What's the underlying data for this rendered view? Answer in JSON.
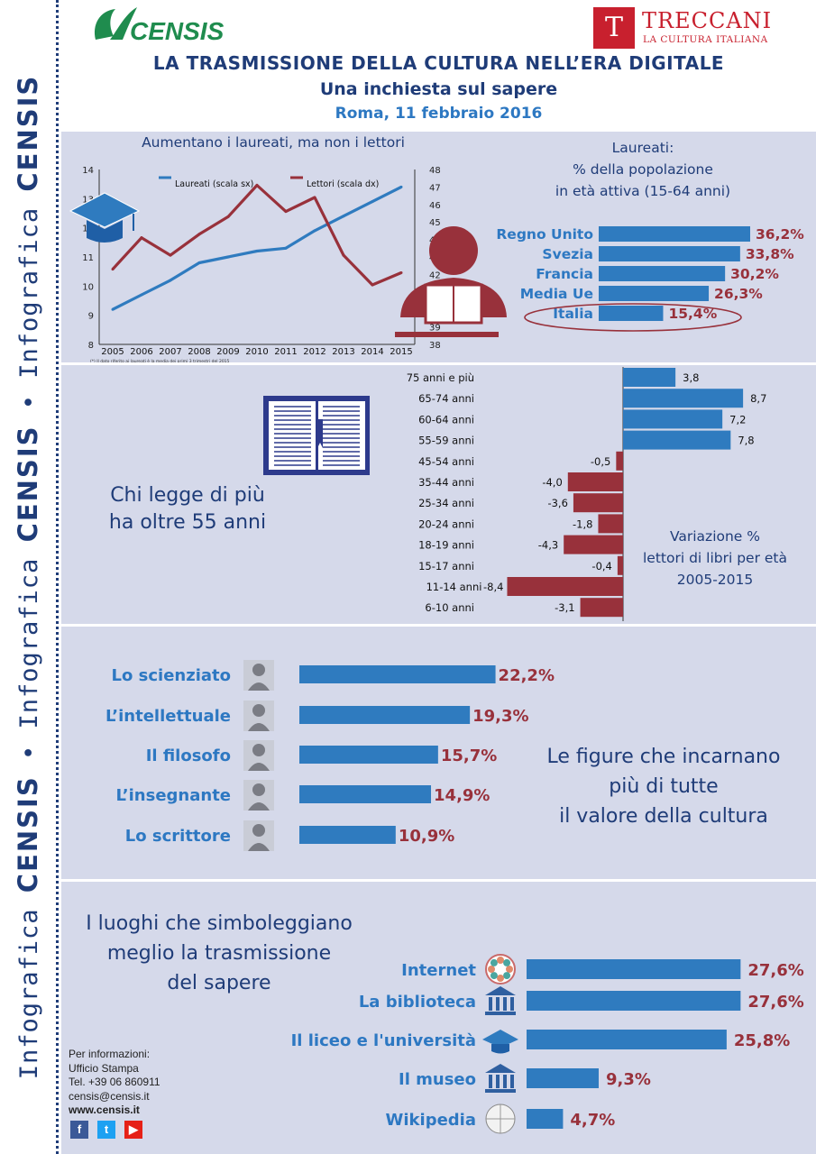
{
  "sidebar": {
    "prefix": "Infografica",
    "brand": "CENSIS",
    "separator": "•"
  },
  "header": {
    "censis_logo": "CENSIS",
    "treccani_name": "TRECCANI",
    "treccani_tagline": "LA CULTURA ITALIANA",
    "title": "LA TRASMISSIONE DELLA CULTURA NELL’ERA DIGITALE",
    "subtitle": "Una inchiesta sul sapere",
    "date": "Roma, 11 febbraio 2016"
  },
  "colors": {
    "blue": "#2f7bbf",
    "red": "#98313b",
    "navy": "#1f3c78",
    "accent_text": "#2d78c2",
    "panel": "#d5d9ea"
  },
  "section1": {
    "line_title": "Aumentano i laureati, ma non i lettori",
    "line_footnote": "(*) Il dato riferito ai laureati è la media dei primi 3 trimestri del 2015",
    "bar_caption": [
      "Laureati:",
      "% della popolazione",
      "in età attiva (15-64 anni)"
    ],
    "icons": [
      "graduation-cap-icon",
      "reader-icon"
    ]
  },
  "section2": {
    "caption": [
      "Chi legge di più",
      "ha oltre 55 anni"
    ],
    "chart_caption": [
      "Variazione %",
      "lettori di libri per età",
      "2005-2015"
    ],
    "icon": "open-book-icon"
  },
  "section3": {
    "caption": [
      "Le figure che incarnano",
      "più di tutte",
      "il valore della cultura"
    ]
  },
  "section4": {
    "caption": [
      "I luoghi che simboleggiano",
      "meglio la trasmissione",
      "del sapere"
    ],
    "contacts": [
      "Per informazioni:",
      "Ufficio Stampa",
      "Tel. +39 06 860911",
      "censis@censis.it",
      "www.censis.it"
    ],
    "social": [
      {
        "label": "f",
        "color": "#3b5998"
      },
      {
        "label": "t",
        "color": "#1da1f2"
      },
      {
        "label": "▶",
        "color": "#e62117"
      }
    ]
  },
  "chart_data": [
    {
      "type": "line",
      "title": "Aumentano i laureati, ma non i lettori",
      "x": [
        "2005",
        "2006",
        "2007",
        "2008",
        "2009",
        "2010",
        "2011",
        "2012",
        "2013",
        "2014",
        "2015"
      ],
      "y_left_ticks": [
        "8",
        "9",
        "10",
        "11",
        "12",
        "13",
        "14"
      ],
      "y_right_ticks": [
        "38",
        "39",
        "40",
        "41",
        "42",
        "43",
        "44",
        "45",
        "46",
        "47",
        "48"
      ],
      "ylim_left": [
        8,
        14
      ],
      "ylim_right": [
        38,
        48
      ],
      "series": [
        {
          "name": "Laureati (scala sx)",
          "axis": "left",
          "color": "#2f7bbf",
          "values": [
            9.2,
            9.7,
            10.2,
            10.8,
            11.0,
            11.2,
            11.3,
            11.9,
            12.4,
            12.9,
            13.4
          ]
        },
        {
          "name": "Lettori (scala dx)",
          "axis": "right",
          "color": "#98313b",
          "values": [
            42.3,
            44.1,
            43.1,
            44.3,
            45.3,
            47.1,
            45.6,
            46.4,
            43.1,
            41.4,
            42.1
          ]
        }
      ]
    },
    {
      "type": "bar",
      "orientation": "horizontal",
      "title": "Laureati: % della popolazione in età attiva (15-64 anni)",
      "categories": [
        "Regno Unito",
        "Svezia",
        "Francia",
        "Media Ue",
        "Italia"
      ],
      "values": [
        36.2,
        33.8,
        30.2,
        26.3,
        15.4
      ],
      "labels": [
        "36,2%",
        "33,8%",
        "30,2%",
        "26,3%",
        "15,4%"
      ],
      "highlight": "Italia"
    },
    {
      "type": "bar",
      "orientation": "horizontal-diverging",
      "title": "Variazione % lettori di libri per età 2005-2015",
      "categories": [
        "75 anni e più",
        "65-74 anni",
        "60-64 anni",
        "55-59 anni",
        "45-54 anni",
        "35-44 anni",
        "25-34 anni",
        "20-24 anni",
        "18-19 anni",
        "15-17 anni",
        "11-14 anni",
        "6-10 anni"
      ],
      "values": [
        3.8,
        8.7,
        7.2,
        7.8,
        -0.5,
        -4.0,
        -3.6,
        -1.8,
        -4.3,
        -0.4,
        -8.4,
        -3.1
      ],
      "labels": [
        "3,8",
        "8,7",
        "7,2",
        "7,8",
        "-0,5",
        "-4,0",
        "-3,6",
        "-1,8",
        "-4,3",
        "-0,4",
        "-8,4",
        "-3,1"
      ]
    },
    {
      "type": "bar",
      "orientation": "horizontal",
      "title": "Le figure che incarnano più di tutte il valore della cultura",
      "categories": [
        "Lo scienziato",
        "L’intellettuale",
        "Il filosofo",
        "L’insegnante",
        "Lo scrittore"
      ],
      "values": [
        22.2,
        19.3,
        15.7,
        14.9,
        10.9
      ],
      "labels": [
        "22,2%",
        "19,3%",
        "15,7%",
        "14,9%",
        "10,9%"
      ]
    },
    {
      "type": "bar",
      "orientation": "horizontal",
      "title": "I luoghi che simboleggiano meglio la trasmissione del sapere",
      "categories": [
        "Internet",
        "La biblioteca",
        "Il liceo e l'università",
        "Il museo",
        "Wikipedia"
      ],
      "values": [
        27.6,
        27.6,
        25.8,
        9.3,
        4.7
      ],
      "labels": [
        "27,6%",
        "27,6%",
        "25,8%",
        "9,3%",
        "4,7%"
      ],
      "icons": [
        "internet-globe-icon",
        "library-icon",
        "university-icon",
        "museum-icon",
        "wikipedia-icon"
      ]
    }
  ]
}
